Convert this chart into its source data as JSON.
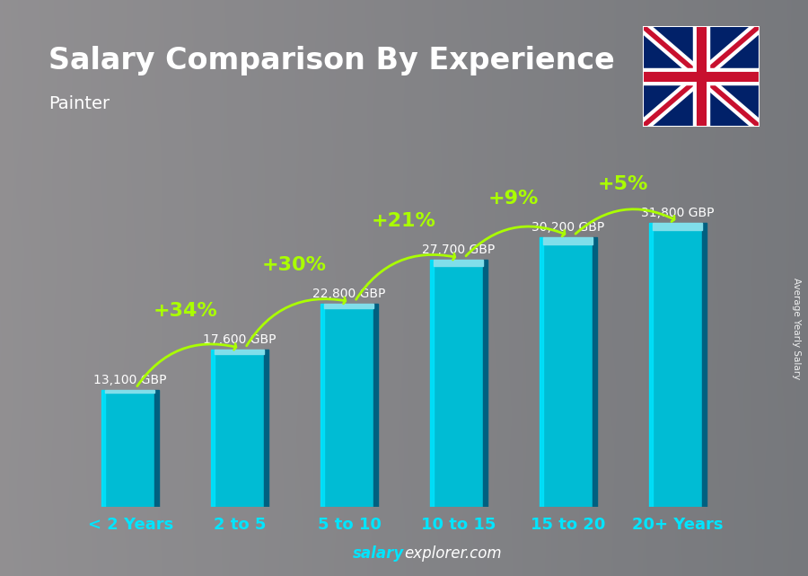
{
  "title": "Salary Comparison By Experience",
  "subtitle": "Painter",
  "categories": [
    "< 2 Years",
    "2 to 5",
    "5 to 10",
    "10 to 15",
    "15 to 20",
    "20+ Years"
  ],
  "values": [
    13100,
    17600,
    22800,
    27700,
    30200,
    31800
  ],
  "labels": [
    "13,100 GBP",
    "17,600 GBP",
    "22,800 GBP",
    "27,700 GBP",
    "30,200 GBP",
    "31,800 GBP"
  ],
  "pct_labels": [
    "+34%",
    "+30%",
    "+21%",
    "+9%",
    "+5%"
  ],
  "bar_face_color": "#00bcd4",
  "bar_left_color": "#00e5ff",
  "bar_top_color": "#80deea",
  "bar_dark_color": "#006080",
  "pct_color": "#aaff00",
  "label_color": "#dddddd",
  "xtick_color": "#00e5ff",
  "title_color": "#ffffff",
  "subtitle_color": "#ffffff",
  "footer_salary": "salary",
  "footer_explorer": "explorer",
  "footer_com": ".com",
  "footer_color_salary": "#00e5ff",
  "footer_color_rest": "#ffffff",
  "side_label": "Average Yearly Salary",
  "ylim": [
    0,
    40000
  ],
  "title_fontsize": 24,
  "subtitle_fontsize": 14,
  "value_fontsize": 10,
  "pct_fontsize": 16,
  "xtick_fontsize": 13,
  "bg_color_light": "#8a8a8a",
  "bg_color_dark": "#555560"
}
